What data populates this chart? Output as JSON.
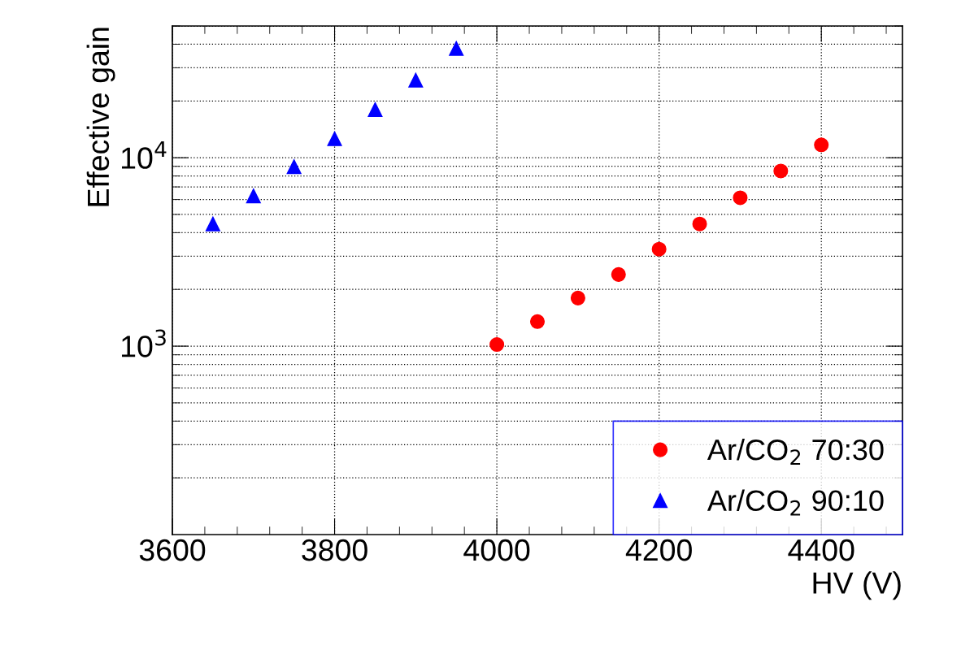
{
  "chart_data": {
    "type": "scatter",
    "xlabel": "HV (V)",
    "ylabel": "Effective gain",
    "log": "y",
    "grid": true,
    "legend": "bottom right",
    "xlim": [
      3600,
      4500
    ],
    "xticks": [
      3600,
      3800,
      4000,
      4200,
      4400
    ],
    "ylim": [
      100,
      50000
    ],
    "yticks": [
      {
        "value": 1000,
        "label": "10$^{3}$"
      },
      {
        "value": 10000,
        "label": "10$^{4}$"
      }
    ],
    "series": [
      {
        "name": "Ar/CO$_{2}$ 70:30",
        "color": "#ff0000",
        "marker": "circle",
        "x": [
          4000,
          4050,
          4100,
          4150,
          4200,
          4250,
          4300,
          4350,
          4400
        ],
        "values": [
          1020,
          1350,
          1800,
          2400,
          3270,
          4450,
          6130,
          8500,
          11700
        ]
      },
      {
        "name": "Ar/CO$_{2}$ 90:10",
        "color": "#0000ff",
        "marker": "triangle",
        "x": [
          3650,
          3700,
          3750,
          3800,
          3850,
          3900,
          3950
        ],
        "values": [
          4450,
          6270,
          8960,
          12600,
          18000,
          25800,
          38000
        ]
      }
    ]
  }
}
